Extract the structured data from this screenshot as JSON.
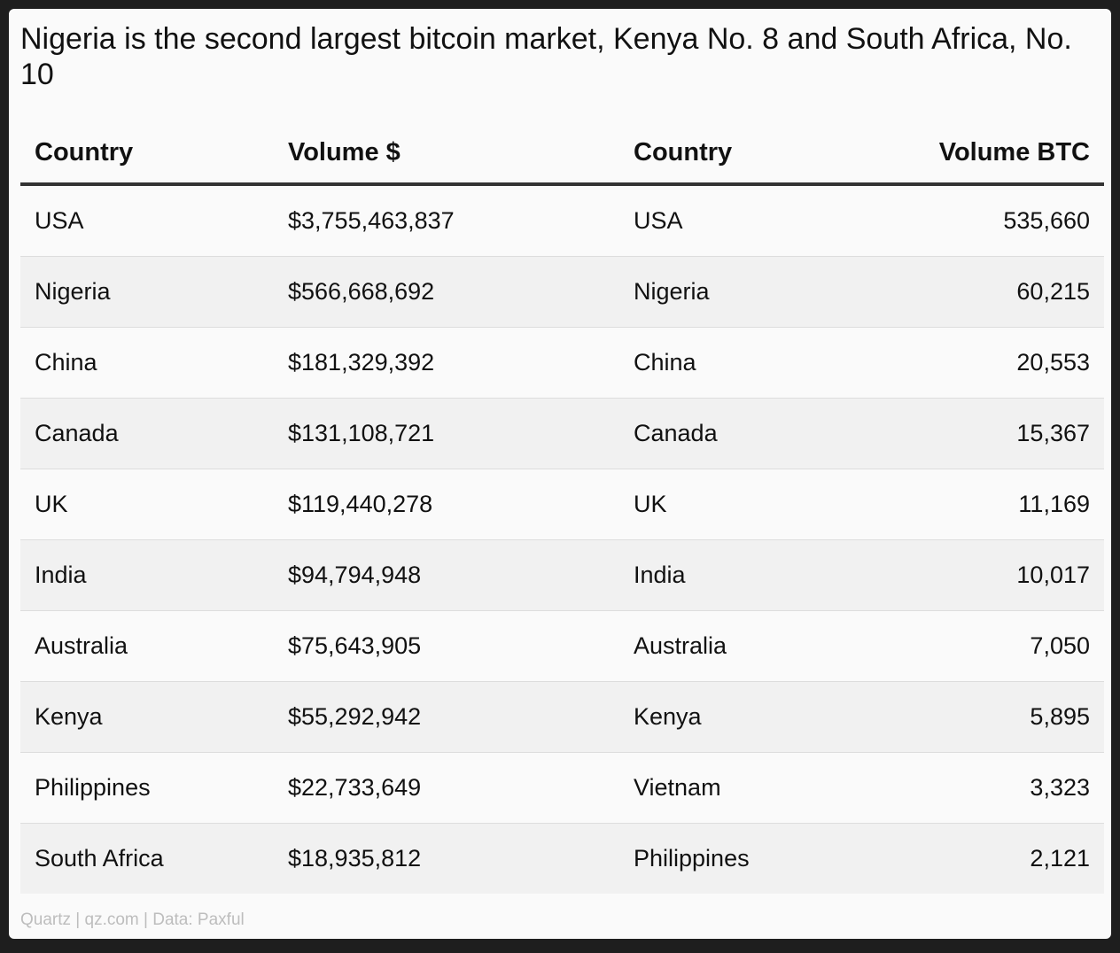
{
  "chart_data": {
    "type": "table",
    "title": "Nigeria is the second largest bitcoin market, Kenya No. 8 and South Africa, No. 10",
    "columns": [
      "Country",
      "Volume $",
      "Country",
      "Volume BTC"
    ],
    "rows": [
      [
        "USA",
        "$3,755,463,837",
        "USA",
        "535,660"
      ],
      [
        "Nigeria",
        "$566,668,692",
        "Nigeria",
        "60,215"
      ],
      [
        "China",
        "$181,329,392",
        "China",
        "20,553"
      ],
      [
        "Canada",
        "$131,108,721",
        "Canada",
        "15,367"
      ],
      [
        "UK",
        "$119,440,278",
        "UK",
        "11,169"
      ],
      [
        "India",
        "$94,794,948",
        "India",
        "10,017"
      ],
      [
        "Australia",
        "$75,643,905",
        "Australia",
        "7,050"
      ],
      [
        "Kenya",
        "$55,292,942",
        "Kenya",
        "5,895"
      ],
      [
        "Philippines",
        "$22,733,649",
        "Vietnam",
        "3,323"
      ],
      [
        "South Africa",
        "$18,935,812",
        "Philippines",
        "2,121"
      ]
    ],
    "source": "Quartz | qz.com | Data: Paxful"
  }
}
